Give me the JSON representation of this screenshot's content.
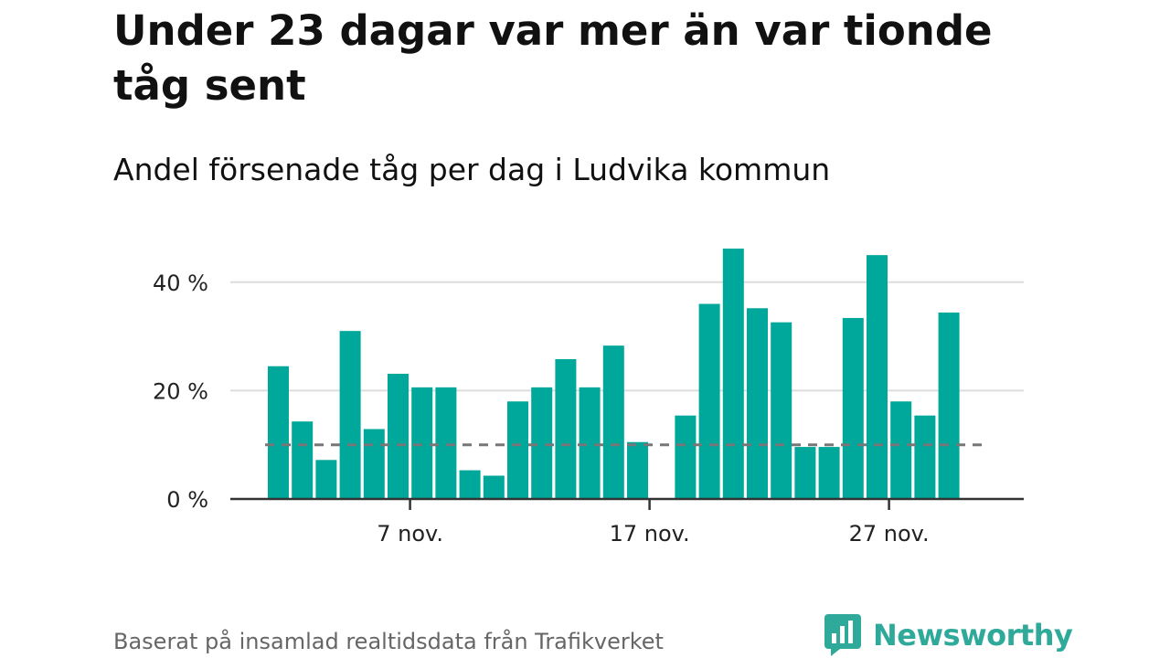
{
  "title": "Under 23 dagar var mer än var tionde tåg sent",
  "subtitle": "Andel försenade tåg per dag i Ludvika kommun",
  "footer": {
    "source": "Baserat på insamlad realtidsdata från Trafikverket",
    "brand": "Newsworthy"
  },
  "colors": {
    "bar": "#00a79b",
    "reference_line": "#777777",
    "grid": "#dddddd",
    "axis": "#333333",
    "brand": "#2fa99a"
  },
  "chart_data": {
    "type": "bar",
    "x": [
      1,
      2,
      3,
      4,
      5,
      6,
      7,
      8,
      9,
      10,
      11,
      12,
      13,
      14,
      15,
      16,
      17,
      18,
      19,
      20,
      21,
      22,
      23,
      24,
      25,
      26,
      27,
      28,
      29,
      30
    ],
    "values": [
      24.5,
      14.3,
      7.2,
      31,
      12.9,
      23.1,
      20.6,
      20.6,
      5.3,
      4.3,
      18,
      20.6,
      25.8,
      20.6,
      28.3,
      10.5,
      0,
      15.4,
      36,
      46.2,
      35.2,
      32.6,
      9.6,
      9.6,
      33.4,
      45,
      18,
      15.4,
      34.4,
      null
    ],
    "x_ticks": [
      {
        "x": 7,
        "label": "7 nov."
      },
      {
        "x": 17,
        "label": "17 nov."
      },
      {
        "x": 27,
        "label": "27 nov."
      }
    ],
    "y_ticks": [
      {
        "value": 0,
        "label": "0 %"
      },
      {
        "value": 20,
        "label": "20 %"
      },
      {
        "value": 40,
        "label": "40 %"
      }
    ],
    "ylim": [
      0,
      48
    ],
    "reference_line": 10,
    "grid": true,
    "xlabel": "",
    "ylabel": ""
  }
}
